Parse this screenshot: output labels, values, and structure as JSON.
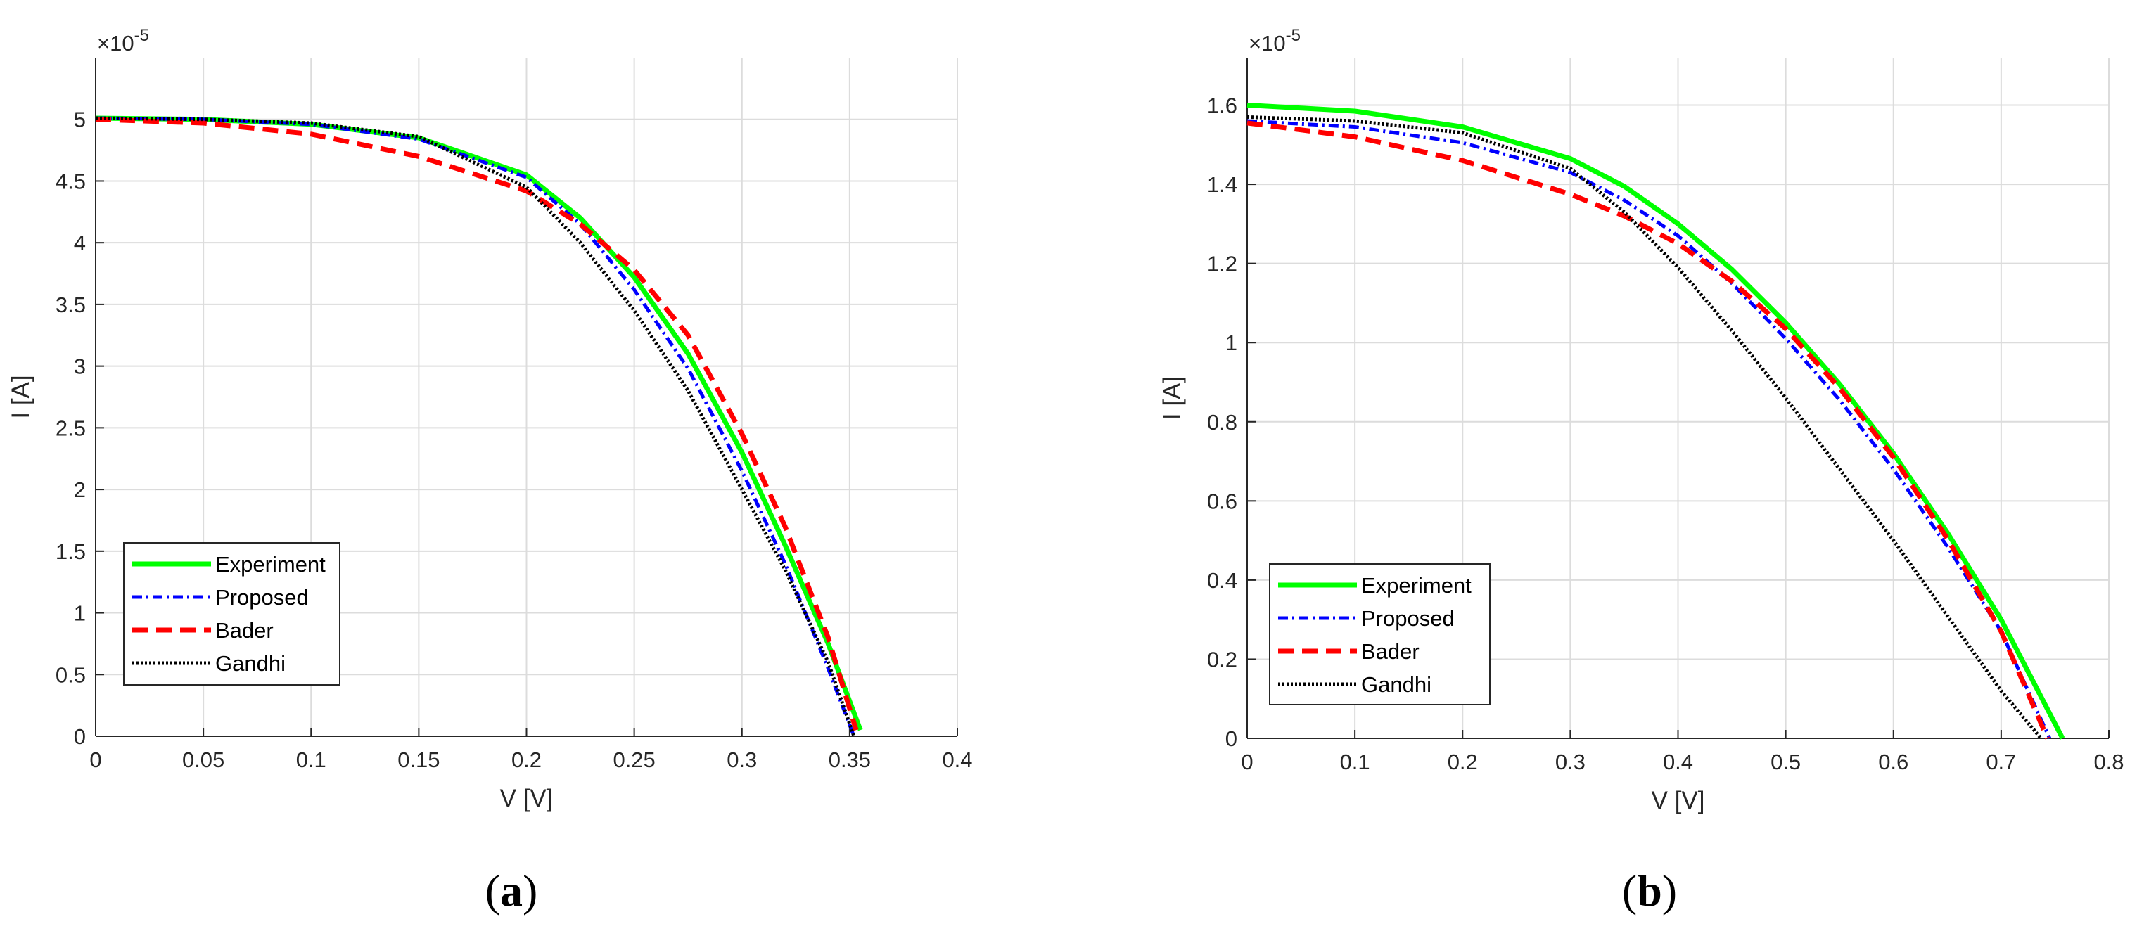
{
  "chart_data": [
    {
      "type": "line",
      "panel_label": "(a)",
      "panel_letter": "a",
      "xlabel": "V [V]",
      "ylabel": "I [A]",
      "y_exponent_base": "×10",
      "y_exponent_power": "-5",
      "xlim": [
        0,
        0.4
      ],
      "ylim": [
        0,
        5.5
      ],
      "xticks": [
        0,
        0.05,
        0.1,
        0.15,
        0.2,
        0.25,
        0.3,
        0.35,
        0.4
      ],
      "xtick_labels": [
        "0",
        "0.05",
        "0.1",
        "0.15",
        "0.2",
        "0.25",
        "0.3",
        "0.35",
        "0.4"
      ],
      "yticks": [
        0,
        0.5,
        1,
        1.5,
        2,
        2.5,
        3,
        3.5,
        4,
        4.5,
        5
      ],
      "ytick_labels": [
        "0",
        "0.5",
        "1",
        "1.5",
        "2",
        "2.5",
        "3",
        "3.5",
        "4",
        "4.5",
        "5"
      ],
      "grid": true,
      "legend_position": "bottom-left",
      "series": [
        {
          "name": "Experiment",
          "color": "#00ff00",
          "style": "solid",
          "x": [
            0,
            0.05,
            0.1,
            0.15,
            0.2,
            0.225,
            0.25,
            0.275,
            0.3,
            0.32,
            0.34,
            0.355
          ],
          "y": [
            5.01,
            5.0,
            4.96,
            4.85,
            4.55,
            4.2,
            3.72,
            3.1,
            2.3,
            1.55,
            0.75,
            0.05
          ]
        },
        {
          "name": "Proposed",
          "color": "#0000ff",
          "style": "dashdot",
          "x": [
            0,
            0.05,
            0.1,
            0.15,
            0.2,
            0.225,
            0.25,
            0.275,
            0.3,
            0.32,
            0.34,
            0.352
          ],
          "y": [
            5.01,
            5.0,
            4.96,
            4.84,
            4.53,
            4.15,
            3.62,
            2.98,
            2.15,
            1.4,
            0.55,
            0.0
          ]
        },
        {
          "name": "Bader",
          "color": "#ff0000",
          "style": "dashed",
          "x": [
            0,
            0.05,
            0.1,
            0.15,
            0.2,
            0.225,
            0.25,
            0.275,
            0.3,
            0.32,
            0.34,
            0.353
          ],
          "y": [
            5.0,
            4.97,
            4.88,
            4.7,
            4.42,
            4.15,
            3.78,
            3.25,
            2.45,
            1.7,
            0.8,
            0.05
          ]
        },
        {
          "name": "Gandhi",
          "color": "#000000",
          "style": "dotted",
          "x": [
            0,
            0.05,
            0.1,
            0.15,
            0.2,
            0.225,
            0.25,
            0.275,
            0.3,
            0.32,
            0.34,
            0.352
          ],
          "y": [
            5.01,
            5.0,
            4.97,
            4.86,
            4.45,
            4.0,
            3.45,
            2.8,
            2.0,
            1.35,
            0.6,
            0.0
          ]
        }
      ]
    },
    {
      "type": "line",
      "panel_label": "(b)",
      "panel_letter": "b",
      "xlabel": "V [V]",
      "ylabel": "I [A]",
      "y_exponent_base": "×10",
      "y_exponent_power": "-5",
      "xlim": [
        0,
        0.8
      ],
      "ylim": [
        0,
        1.72
      ],
      "xticks": [
        0,
        0.1,
        0.2,
        0.3,
        0.4,
        0.5,
        0.6,
        0.7,
        0.8
      ],
      "xtick_labels": [
        "0",
        "0.1",
        "0.2",
        "0.3",
        "0.4",
        "0.5",
        "0.6",
        "0.7",
        "0.8"
      ],
      "yticks": [
        0,
        0.2,
        0.4,
        0.6,
        0.8,
        1,
        1.2,
        1.4,
        1.6
      ],
      "ytick_labels": [
        "0",
        "0.2",
        "0.4",
        "0.6",
        "0.8",
        "1",
        "1.2",
        "1.4",
        "1.6"
      ],
      "grid": true,
      "legend_position": "bottom-left",
      "series": [
        {
          "name": "Experiment",
          "color": "#00ff00",
          "style": "solid",
          "x": [
            0,
            0.1,
            0.2,
            0.3,
            0.35,
            0.4,
            0.45,
            0.5,
            0.55,
            0.6,
            0.65,
            0.7,
            0.757
          ],
          "y": [
            1.6,
            1.585,
            1.545,
            1.465,
            1.395,
            1.3,
            1.185,
            1.05,
            0.895,
            0.72,
            0.52,
            0.3,
            0.0
          ]
        },
        {
          "name": "Proposed",
          "color": "#0000ff",
          "style": "dashdot",
          "x": [
            0,
            0.1,
            0.2,
            0.3,
            0.35,
            0.4,
            0.45,
            0.5,
            0.55,
            0.6,
            0.65,
            0.7,
            0.745
          ],
          "y": [
            1.56,
            1.545,
            1.505,
            1.43,
            1.36,
            1.27,
            1.15,
            1.01,
            0.855,
            0.68,
            0.485,
            0.27,
            0.0
          ]
        },
        {
          "name": "Bader",
          "color": "#ff0000",
          "style": "dashed",
          "x": [
            0,
            0.1,
            0.2,
            0.3,
            0.35,
            0.4,
            0.45,
            0.5,
            0.55,
            0.6,
            0.65,
            0.7,
            0.743
          ],
          "y": [
            1.555,
            1.52,
            1.46,
            1.375,
            1.32,
            1.25,
            1.155,
            1.035,
            0.885,
            0.71,
            0.505,
            0.27,
            0.0
          ]
        },
        {
          "name": "Gandhi",
          "color": "#000000",
          "style": "dotted",
          "x": [
            0,
            0.1,
            0.2,
            0.3,
            0.35,
            0.4,
            0.45,
            0.5,
            0.55,
            0.6,
            0.65,
            0.7,
            0.737
          ],
          "y": [
            1.57,
            1.56,
            1.53,
            1.44,
            1.33,
            1.19,
            1.03,
            0.86,
            0.68,
            0.5,
            0.31,
            0.12,
            0.0
          ]
        }
      ]
    }
  ]
}
